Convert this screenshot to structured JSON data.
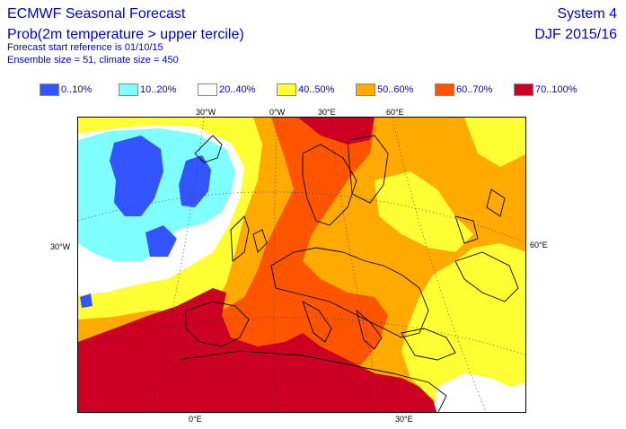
{
  "header": {
    "title": "ECMWF Seasonal Forecast",
    "subtitle": "Prob(2m temperature > upper tercile)",
    "start_reference": "Forecast start reference is 01/10/15",
    "ensemble": "Ensemble size = 51, climate size = 450",
    "system": "System 4",
    "season": "DJF 2015/16"
  },
  "legend": [
    {
      "label": "0..10%",
      "color": "#3355ff"
    },
    {
      "label": "10..20%",
      "color": "#7fffff"
    },
    {
      "label": "20..40%",
      "color": "#ffffff"
    },
    {
      "label": "40..50%",
      "color": "#ffff33"
    },
    {
      "label": "50..60%",
      "color": "#ffaa00"
    },
    {
      "label": "60..70%",
      "color": "#ff5500"
    },
    {
      "label": "70..100%",
      "color": "#cc0022"
    }
  ],
  "coordinates": {
    "top": [
      "30°W",
      "0°W",
      "30°E",
      "60°E"
    ],
    "left": [
      "30°W"
    ],
    "right": [
      "60°E"
    ],
    "bottom": [
      "0°E",
      "30°E"
    ]
  }
}
